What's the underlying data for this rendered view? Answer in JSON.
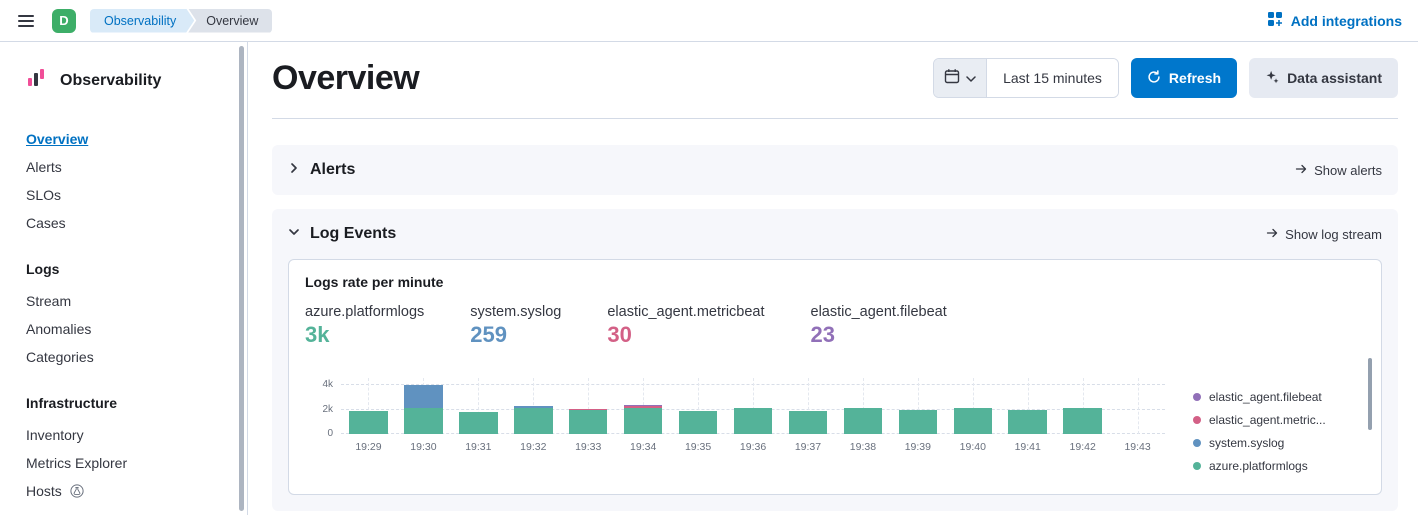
{
  "topbar": {
    "space_initial": "D",
    "breadcrumbs": [
      "Observability",
      "Overview"
    ],
    "add_integrations_label": "Add integrations"
  },
  "sidebar": {
    "title": "Observability",
    "sections": [
      {
        "heading": "",
        "items": [
          {
            "label": "Overview",
            "active": true
          },
          {
            "label": "Alerts"
          },
          {
            "label": "SLOs"
          },
          {
            "label": "Cases"
          }
        ]
      },
      {
        "heading": "Logs",
        "items": [
          {
            "label": "Stream"
          },
          {
            "label": "Anomalies"
          },
          {
            "label": "Categories"
          }
        ]
      },
      {
        "heading": "Infrastructure",
        "items": [
          {
            "label": "Inventory"
          },
          {
            "label": "Metrics Explorer"
          },
          {
            "label": "Hosts",
            "beta": true
          }
        ]
      }
    ]
  },
  "header": {
    "title": "Overview",
    "time_range_value": "Last 15 minutes",
    "refresh_label": "Refresh",
    "data_assistant_label": "Data assistant"
  },
  "panels": {
    "alerts": {
      "title": "Alerts",
      "action_label": "Show alerts",
      "state": "collapsed"
    },
    "log_events": {
      "title": "Log Events",
      "action_label": "Show log stream",
      "state": "expanded"
    }
  },
  "log_chart": {
    "title": "Logs rate per minute",
    "stats": [
      {
        "label": "azure.platformlogs",
        "value": "3k",
        "color": "#54b399"
      },
      {
        "label": "system.syslog",
        "value": "259",
        "color": "#6092c0"
      },
      {
        "label": "elastic_agent.metricbeat",
        "value": "30",
        "color": "#d36086"
      },
      {
        "label": "elastic_agent.filebeat",
        "value": "23",
        "color": "#9170b8"
      }
    ],
    "legend": [
      {
        "label": "elastic_agent.filebeat",
        "color": "#9170b8"
      },
      {
        "label": "elastic_agent.metric...",
        "color": "#d36086"
      },
      {
        "label": "system.syslog",
        "color": "#6092c0"
      },
      {
        "label": "azure.platformlogs",
        "color": "#54b399"
      }
    ]
  },
  "chart_data": {
    "type": "bar",
    "stacked": true,
    "title": "Logs rate per minute",
    "x": [
      "19:29",
      "19:30",
      "19:31",
      "19:32",
      "19:33",
      "19:34",
      "19:35",
      "19:36",
      "19:37",
      "19:38",
      "19:39",
      "19:40",
      "19:41",
      "19:42",
      "19:43"
    ],
    "series": [
      {
        "name": "azure.platformlogs",
        "color": "#54b399",
        "values": [
          1900,
          2100,
          1800,
          2150,
          1950,
          2100,
          1900,
          2150,
          1900,
          2150,
          2000,
          2150,
          2000,
          2150,
          0
        ]
      },
      {
        "name": "system.syslog",
        "color": "#6092c0",
        "values": [
          0,
          1900,
          0,
          120,
          0,
          0,
          0,
          0,
          0,
          0,
          0,
          0,
          0,
          0,
          0
        ]
      },
      {
        "name": "elastic_agent.metricbeat",
        "color": "#d36086",
        "values": [
          0,
          0,
          0,
          0,
          120,
          200,
          0,
          0,
          0,
          0,
          0,
          0,
          0,
          0,
          0
        ]
      },
      {
        "name": "elastic_agent.filebeat",
        "color": "#9170b8",
        "values": [
          0,
          0,
          0,
          0,
          0,
          100,
          0,
          0,
          0,
          0,
          0,
          0,
          0,
          0,
          0
        ]
      }
    ],
    "yticks": [
      "4k",
      "2k",
      "0"
    ],
    "ytick_values": [
      4000,
      2000,
      0
    ],
    "ylim": [
      0,
      4600
    ],
    "grid": "dashed",
    "legend_position": "right"
  },
  "colors": {
    "primary_button": "#0077cc",
    "link": "#0071c2",
    "space_avatar": "#3dae68"
  },
  "icons": {
    "menu": "hamburger",
    "add_integrations": "grid-plus",
    "quick_select": "calendar",
    "quick_select_caret": "chevron-down",
    "refresh": "refresh-arrow",
    "data_assistant": "sparkle",
    "alerts_panel": "chevron-right",
    "log_events_panel": "chevron-down",
    "panel_action": "arrow-right",
    "hosts_badge": "flask",
    "observability_logo": "bars"
  }
}
